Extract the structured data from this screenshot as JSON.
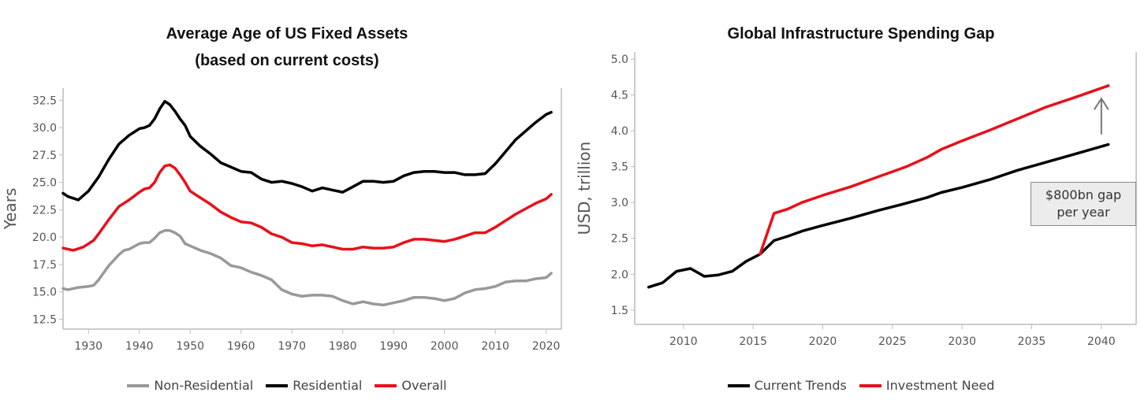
{
  "chart_data": [
    {
      "type": "line",
      "title": "Average Age of US Fixed Assets",
      "subtitle": "(based on current costs)",
      "xlabel": "",
      "ylabel": "Years",
      "xlim": [
        1925,
        2023
      ],
      "ylim": [
        11.6,
        33.6
      ],
      "x_ticks": [
        "1930",
        "1940",
        "1950",
        "1960",
        "1970",
        "1980",
        "1990",
        "2000",
        "2010",
        "2020"
      ],
      "y_ticks": [
        "32.5",
        "30.0",
        "27.5",
        "25.0",
        "22.5",
        "20.0",
        "17.5",
        "15.0",
        "12.5"
      ],
      "legend_position": "bottom",
      "series": [
        {
          "name": "Non-Residential",
          "color": "#999999",
          "points": [
            [
              1925,
              15.3
            ],
            [
              1926,
              15.2
            ],
            [
              1928,
              15.4
            ],
            [
              1930,
              15.5
            ],
            [
              1931,
              15.6
            ],
            [
              1932,
              16.1
            ],
            [
              1934,
              17.4
            ],
            [
              1936,
              18.4
            ],
            [
              1937,
              18.8
            ],
            [
              1938,
              18.9
            ],
            [
              1940,
              19.4
            ],
            [
              1941,
              19.5
            ],
            [
              1942,
              19.5
            ],
            [
              1943,
              19.9
            ],
            [
              1944,
              20.4
            ],
            [
              1945,
              20.6
            ],
            [
              1946,
              20.6
            ],
            [
              1947,
              20.4
            ],
            [
              1948,
              20.1
            ],
            [
              1949,
              19.4
            ],
            [
              1950,
              19.2
            ],
            [
              1952,
              18.8
            ],
            [
              1954,
              18.5
            ],
            [
              1956,
              18.1
            ],
            [
              1958,
              17.4
            ],
            [
              1960,
              17.2
            ],
            [
              1962,
              16.8
            ],
            [
              1964,
              16.5
            ],
            [
              1966,
              16.1
            ],
            [
              1968,
              15.2
            ],
            [
              1970,
              14.8
            ],
            [
              1972,
              14.6
            ],
            [
              1974,
              14.7
            ],
            [
              1976,
              14.7
            ],
            [
              1978,
              14.6
            ],
            [
              1980,
              14.2
            ],
            [
              1982,
              13.9
            ],
            [
              1984,
              14.1
            ],
            [
              1986,
              13.9
            ],
            [
              1988,
              13.8
            ],
            [
              1990,
              14.0
            ],
            [
              1992,
              14.2
            ],
            [
              1994,
              14.5
            ],
            [
              1996,
              14.5
            ],
            [
              1998,
              14.4
            ],
            [
              2000,
              14.2
            ],
            [
              2002,
              14.4
            ],
            [
              2004,
              14.9
            ],
            [
              2006,
              15.2
            ],
            [
              2008,
              15.3
            ],
            [
              2010,
              15.5
            ],
            [
              2012,
              15.9
            ],
            [
              2014,
              16.0
            ],
            [
              2016,
              16.0
            ],
            [
              2018,
              16.2
            ],
            [
              2020,
              16.3
            ],
            [
              2021,
              16.7
            ]
          ]
        },
        {
          "name": "Residential",
          "color": "#000000",
          "points": [
            [
              1925,
              24.0
            ],
            [
              1926,
              23.7
            ],
            [
              1928,
              23.4
            ],
            [
              1930,
              24.2
            ],
            [
              1932,
              25.5
            ],
            [
              1934,
              27.1
            ],
            [
              1936,
              28.5
            ],
            [
              1938,
              29.3
            ],
            [
              1940,
              29.9
            ],
            [
              1941,
              30.0
            ],
            [
              1942,
              30.2
            ],
            [
              1943,
              30.8
            ],
            [
              1944,
              31.7
            ],
            [
              1945,
              32.4
            ],
            [
              1946,
              32.1
            ],
            [
              1947,
              31.5
            ],
            [
              1948,
              30.8
            ],
            [
              1949,
              30.2
            ],
            [
              1950,
              29.2
            ],
            [
              1952,
              28.3
            ],
            [
              1954,
              27.6
            ],
            [
              1956,
              26.8
            ],
            [
              1958,
              26.4
            ],
            [
              1960,
              26.0
            ],
            [
              1962,
              25.9
            ],
            [
              1964,
              25.3
            ],
            [
              1966,
              25.0
            ],
            [
              1968,
              25.1
            ],
            [
              1970,
              24.9
            ],
            [
              1972,
              24.6
            ],
            [
              1974,
              24.2
            ],
            [
              1976,
              24.5
            ],
            [
              1978,
              24.3
            ],
            [
              1980,
              24.1
            ],
            [
              1982,
              24.6
            ],
            [
              1984,
              25.1
            ],
            [
              1986,
              25.1
            ],
            [
              1988,
              25.0
            ],
            [
              1990,
              25.1
            ],
            [
              1992,
              25.6
            ],
            [
              1994,
              25.9
            ],
            [
              1996,
              26.0
            ],
            [
              1998,
              26.0
            ],
            [
              2000,
              25.9
            ],
            [
              2002,
              25.9
            ],
            [
              2004,
              25.7
            ],
            [
              2006,
              25.7
            ],
            [
              2008,
              25.8
            ],
            [
              2010,
              26.7
            ],
            [
              2012,
              27.8
            ],
            [
              2014,
              28.9
            ],
            [
              2016,
              29.7
            ],
            [
              2018,
              30.5
            ],
            [
              2020,
              31.2
            ],
            [
              2021,
              31.4
            ]
          ]
        },
        {
          "name": "Overall",
          "color": "#e8101a",
          "points": [
            [
              1925,
              19.0
            ],
            [
              1927,
              18.8
            ],
            [
              1929,
              19.1
            ],
            [
              1931,
              19.7
            ],
            [
              1932,
              20.3
            ],
            [
              1934,
              21.6
            ],
            [
              1936,
              22.8
            ],
            [
              1938,
              23.4
            ],
            [
              1940,
              24.1
            ],
            [
              1941,
              24.4
            ],
            [
              1942,
              24.5
            ],
            [
              1943,
              25.0
            ],
            [
              1944,
              25.9
            ],
            [
              1945,
              26.5
            ],
            [
              1946,
              26.6
            ],
            [
              1947,
              26.3
            ],
            [
              1948,
              25.7
            ],
            [
              1949,
              25.0
            ],
            [
              1950,
              24.2
            ],
            [
              1952,
              23.6
            ],
            [
              1954,
              23.0
            ],
            [
              1956,
              22.3
            ],
            [
              1958,
              21.8
            ],
            [
              1960,
              21.4
            ],
            [
              1962,
              21.3
            ],
            [
              1964,
              20.9
            ],
            [
              1966,
              20.3
            ],
            [
              1968,
              20.0
            ],
            [
              1970,
              19.5
            ],
            [
              1972,
              19.4
            ],
            [
              1974,
              19.2
            ],
            [
              1976,
              19.3
            ],
            [
              1978,
              19.1
            ],
            [
              1980,
              18.9
            ],
            [
              1982,
              18.9
            ],
            [
              1984,
              19.1
            ],
            [
              1986,
              19.0
            ],
            [
              1988,
              19.0
            ],
            [
              1990,
              19.1
            ],
            [
              1992,
              19.5
            ],
            [
              1994,
              19.8
            ],
            [
              1996,
              19.8
            ],
            [
              1998,
              19.7
            ],
            [
              2000,
              19.6
            ],
            [
              2002,
              19.8
            ],
            [
              2004,
              20.1
            ],
            [
              2006,
              20.4
            ],
            [
              2008,
              20.4
            ],
            [
              2010,
              20.9
            ],
            [
              2012,
              21.5
            ],
            [
              2014,
              22.1
            ],
            [
              2016,
              22.6
            ],
            [
              2018,
              23.1
            ],
            [
              2020,
              23.5
            ],
            [
              2021,
              23.9
            ]
          ]
        }
      ]
    },
    {
      "type": "line",
      "title": "Global Infrastructure Spending Gap",
      "xlabel": "",
      "ylabel": "USD, trillion",
      "xlim": [
        2006.5,
        2042.5
      ],
      "ylim": [
        1.3,
        5.1
      ],
      "x_ticks": [
        "2010",
        "2015",
        "2020",
        "2025",
        "2030",
        "2035",
        "2040"
      ],
      "y_ticks": [
        "5.0",
        "4.5",
        "4.0",
        "3.5",
        "3.0",
        "2.5",
        "2.0",
        "1.5"
      ],
      "legend_position": "bottom",
      "annotation": {
        "line1": "$800bn gap",
        "line2": "per year",
        "arrow_x": 2040,
        "arrow_from": 3.95,
        "arrow_to": 4.45
      },
      "series": [
        {
          "name": "Current Trends",
          "color": "#000000",
          "points": [
            [
              2007.5,
              1.82
            ],
            [
              2008.5,
              1.88
            ],
            [
              2009.5,
              2.04
            ],
            [
              2010.5,
              2.08
            ],
            [
              2011.5,
              1.97
            ],
            [
              2012.5,
              1.99
            ],
            [
              2013.5,
              2.04
            ],
            [
              2014.5,
              2.18
            ],
            [
              2015.5,
              2.28
            ],
            [
              2016.5,
              2.47
            ],
            [
              2017.5,
              2.53
            ],
            [
              2018.5,
              2.6
            ],
            [
              2020,
              2.68
            ],
            [
              2022,
              2.78
            ],
            [
              2024,
              2.89
            ],
            [
              2026,
              2.99
            ],
            [
              2027.5,
              3.07
            ],
            [
              2028.5,
              3.14
            ],
            [
              2030,
              3.21
            ],
            [
              2032,
              3.32
            ],
            [
              2034,
              3.45
            ],
            [
              2036,
              3.56
            ],
            [
              2038,
              3.67
            ],
            [
              2040.5,
              3.81
            ]
          ]
        },
        {
          "name": "Investment Need",
          "color": "#e8101a",
          "points": [
            [
              2015.5,
              2.28
            ],
            [
              2016.5,
              2.85
            ],
            [
              2017.5,
              2.91
            ],
            [
              2018.5,
              3.0
            ],
            [
              2020,
              3.1
            ],
            [
              2022,
              3.22
            ],
            [
              2024,
              3.36
            ],
            [
              2026,
              3.5
            ],
            [
              2027.5,
              3.63
            ],
            [
              2028.5,
              3.74
            ],
            [
              2030,
              3.86
            ],
            [
              2032,
              4.01
            ],
            [
              2034,
              4.17
            ],
            [
              2036,
              4.33
            ],
            [
              2038,
              4.46
            ],
            [
              2040.5,
              4.63
            ]
          ]
        }
      ]
    }
  ]
}
